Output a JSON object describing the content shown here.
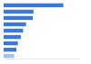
{
  "chart_data": {
    "type": "bar",
    "orientation": "horizontal",
    "categories": [
      null,
      null,
      null,
      null,
      null,
      null,
      null,
      null,
      null
    ],
    "values": [
      80,
      40,
      39,
      30,
      26,
      23,
      19,
      17,
      14
    ],
    "colors": [
      "#3b78d8",
      "#3b78d8",
      "#3b78d8",
      "#3b78d8",
      "#3b78d8",
      "#3b78d8",
      "#3b78d8",
      "#3b78d8",
      "#a3c0ef"
    ],
    "xlim": [
      0,
      100
    ],
    "tick_labels": false,
    "grid": false
  }
}
